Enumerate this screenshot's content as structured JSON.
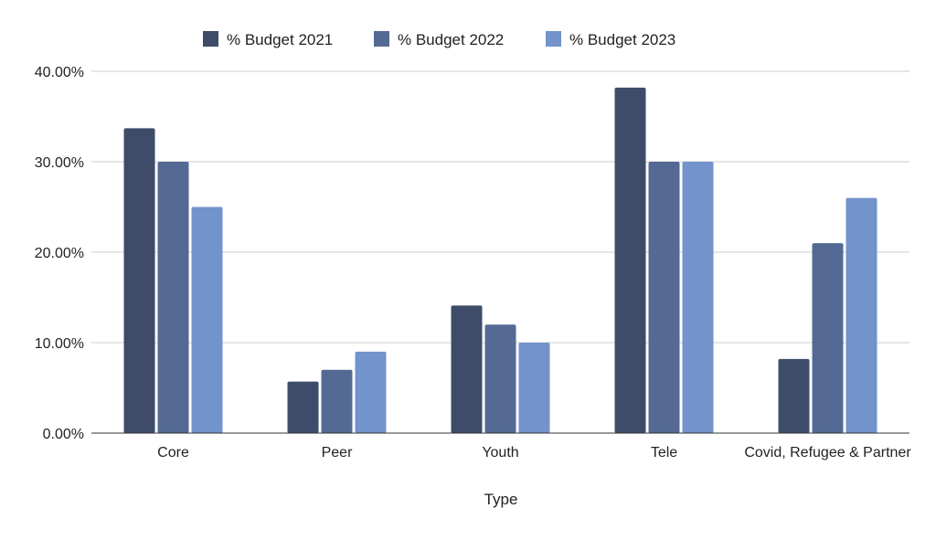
{
  "chart_data": {
    "type": "bar",
    "title": "",
    "xlabel": "Type",
    "ylabel": "",
    "categories": [
      "Core",
      "Peer",
      "Youth",
      "Tele",
      "Covid, Refugee & Partner"
    ],
    "series": [
      {
        "name": "% Budget 2021",
        "color": "#3e4c6a",
        "values": [
          33.7,
          5.7,
          14.1,
          38.2,
          8.2
        ]
      },
      {
        "name": "% Budget 2022",
        "color": "#546a95",
        "values": [
          30,
          7,
          12,
          30,
          21
        ]
      },
      {
        "name": "% Budget 2023",
        "color": "#7293cb",
        "values": [
          25,
          9,
          10,
          30,
          26
        ]
      }
    ],
    "ylim": [
      0,
      40
    ],
    "yticks": [
      "0.00%",
      "10.00%",
      "20.00%",
      "30.00%",
      "40.00%"
    ],
    "grid": true,
    "legend": "top"
  }
}
